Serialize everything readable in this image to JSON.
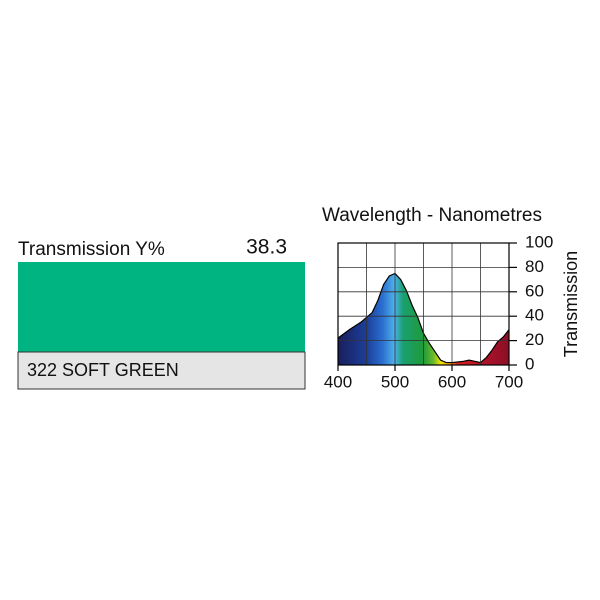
{
  "swatch": {
    "transmission_label": "Transmission Y%",
    "transmission_value": 38.3,
    "name": "322 SOFT GREEN",
    "color": "#00b482"
  },
  "chart_data": {
    "type": "area",
    "title": "Wavelength - Nanometres",
    "y_label": "Transmission",
    "x": [
      400,
      420,
      440,
      460,
      470,
      480,
      490,
      500,
      510,
      520,
      530,
      540,
      550,
      560,
      570,
      580,
      590,
      600,
      620,
      630,
      640,
      650,
      660,
      670,
      680,
      690,
      700
    ],
    "values": [
      22,
      29,
      35,
      43,
      53,
      66,
      73,
      75,
      70,
      61,
      49,
      39,
      26,
      18,
      11,
      4,
      2,
      2,
      3,
      4,
      3,
      2,
      6,
      12,
      19,
      23,
      29
    ],
    "xlim": [
      400,
      700
    ],
    "ylim": [
      0,
      100
    ],
    "xticks": [
      400,
      500,
      600,
      700
    ],
    "yticks": [
      0,
      20,
      40,
      60,
      80,
      100
    ],
    "grid": true
  }
}
